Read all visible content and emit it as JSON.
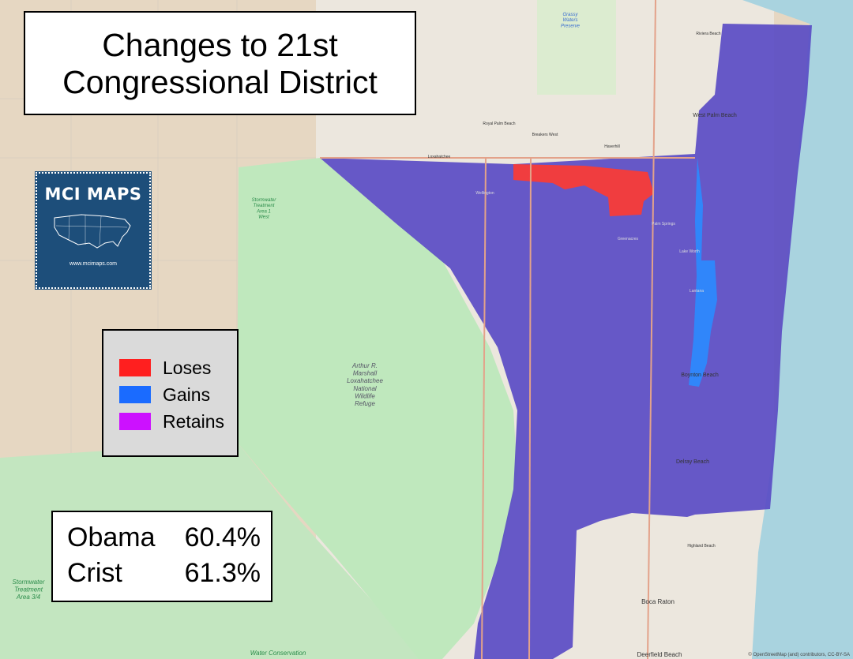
{
  "title": {
    "line1": "Changes to 21st",
    "line2": "Congressional District"
  },
  "legend": [
    {
      "label": "Loses",
      "color": "#ff1f1f"
    },
    {
      "label": "Gains",
      "color": "#1a6bff"
    },
    {
      "label": "Retains",
      "color": "#cc11ff"
    }
  ],
  "stats": [
    {
      "name": "Obama",
      "value": "60.4%"
    },
    {
      "name": "Crist",
      "value": "61.3%"
    }
  ],
  "logo": {
    "text": "MCI MAPS",
    "url": "www.mcimaps.com"
  },
  "map_labels": {
    "refuge": [
      "Arthur R.",
      "Marshall",
      "Loxahatchee",
      "National",
      "Wildlife",
      "Refuge"
    ],
    "stormwater_west": [
      "Stormwater",
      "Treatment",
      "Area 1",
      "West"
    ],
    "stormwater_south": [
      "Stormwater",
      "Treatment",
      "Area 3/4"
    ],
    "grassy_waters": [
      "Grassy",
      "Waters",
      "Preserve"
    ],
    "water_conservation": "Water Conservation",
    "riviera_beach": "Riviera Beach",
    "west_palm_beach": "West Palm Beach",
    "boynton_beach": "Boynton Beach",
    "delray_beach": "Delray Beach",
    "boca_raton": "Boca Raton",
    "deerfield_beach": "Deerfield Beach",
    "highland_beach": "Highland Beach",
    "royal_palm_beach": "Royal Palm Beach",
    "loxahatchee": "Loxahatchee",
    "wellington": "Wellington",
    "greenacres": "Greenacres",
    "lantana": "Lantana",
    "palm_springs": "Palm Springs",
    "lake_worth": "Lake Worth",
    "haverhill": "Haverhill",
    "breakers_west": "Breakers West"
  },
  "colors": {
    "district": "#5a4cc4",
    "wetland": "#bfe8bd",
    "ocean": "#a9d3df",
    "land": "#eadcc8"
  },
  "attribution": "© OpenStreetMap (and) contributors, CC-BY-SA"
}
